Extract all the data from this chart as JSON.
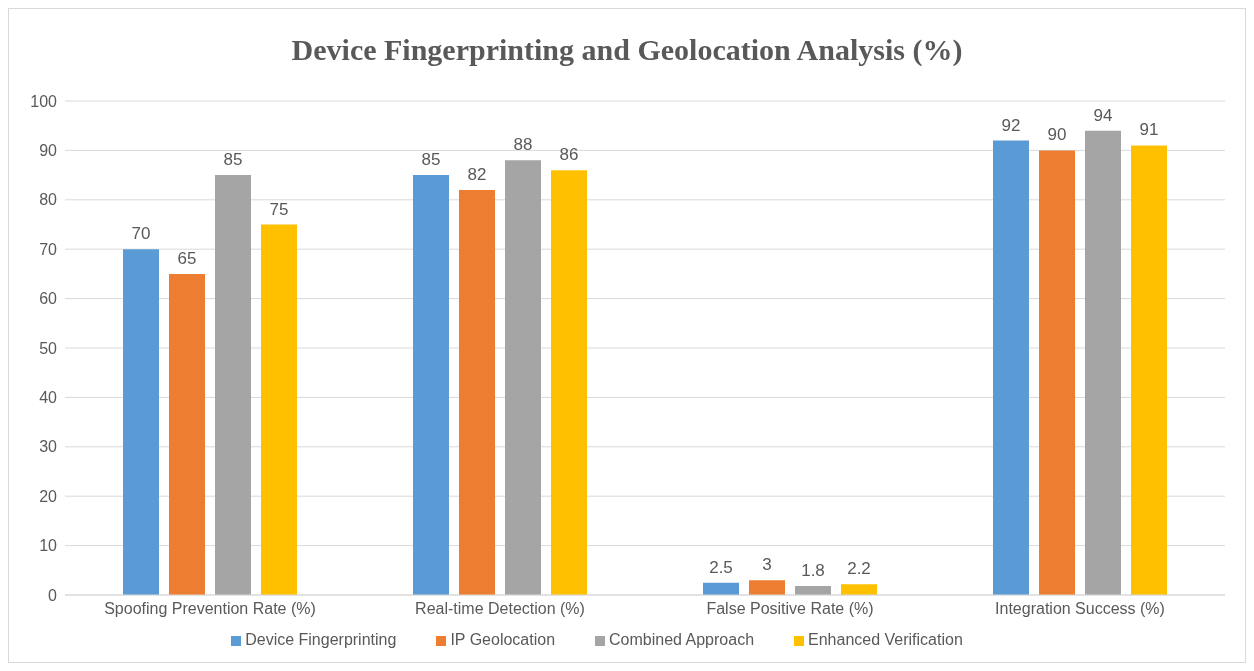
{
  "chart_data": {
    "type": "bar",
    "title": "Device Fingerprinting and Geolocation Analysis (%)",
    "categories": [
      "Spoofing Prevention Rate (%)",
      "Real-time Detection (%)",
      "False Positive Rate (%)",
      "Integration Success (%)"
    ],
    "series": [
      {
        "name": "Device Fingerprinting",
        "color": "#5b9bd5",
        "values": [
          70,
          85,
          2.5,
          92
        ]
      },
      {
        "name": "IP Geolocation",
        "color": "#ed7d31",
        "values": [
          65,
          82,
          3,
          90
        ]
      },
      {
        "name": "Combined Approach",
        "color": "#a5a5a5",
        "values": [
          85,
          88,
          1.8,
          94
        ]
      },
      {
        "name": "Enhanced Verification",
        "color": "#ffc000",
        "values": [
          75,
          86,
          2.2,
          91
        ]
      }
    ],
    "ylim": [
      0,
      100
    ],
    "yticks": [
      0,
      10,
      20,
      30,
      40,
      50,
      60,
      70,
      80,
      90,
      100
    ],
    "grid": "y",
    "legend": "bottom",
    "data_labels": true
  }
}
